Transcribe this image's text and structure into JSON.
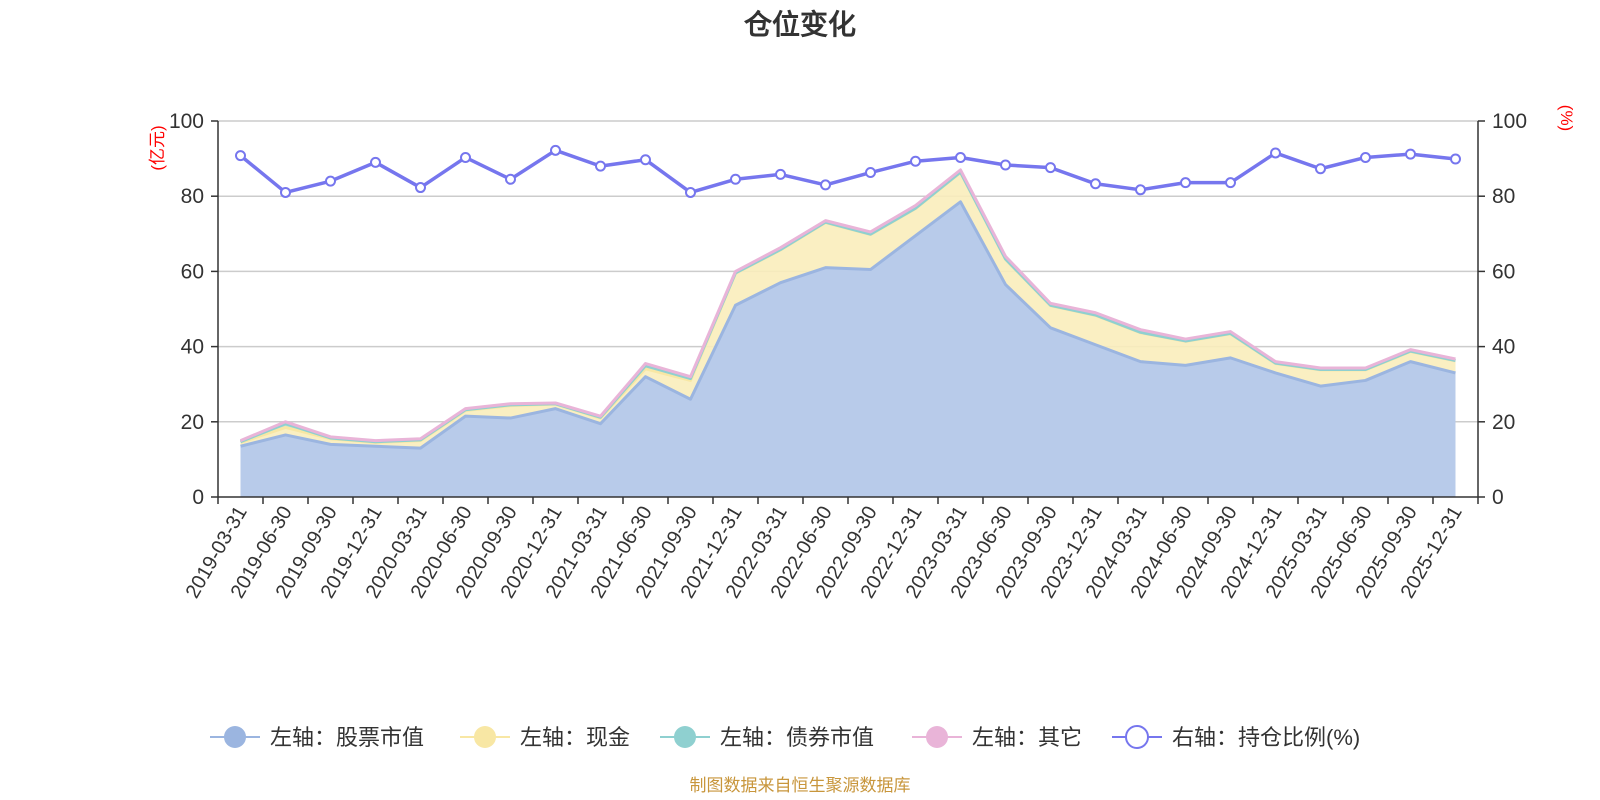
{
  "chart_data": {
    "type": "area",
    "title": "仓位变化",
    "source": "制图数据来自恒生聚源数据库",
    "y_left": {
      "unit": "(亿元)",
      "min": 0,
      "max": 100,
      "ticks": [
        "0",
        "20",
        "40",
        "60",
        "80",
        "100"
      ]
    },
    "y_right": {
      "unit": "(%)",
      "min": 0,
      "max": 100,
      "ticks": [
        "0",
        "20",
        "40",
        "60",
        "80",
        "100"
      ]
    },
    "categories": [
      "2019-03-31",
      "2019-06-30",
      "2019-09-30",
      "2019-12-31",
      "2020-03-31",
      "2020-06-30",
      "2020-09-30",
      "2020-12-31",
      "2021-03-31",
      "2021-06-30",
      "2021-09-30",
      "2021-12-31",
      "2022-03-31",
      "2022-06-30",
      "2022-09-30",
      "2022-12-31",
      "2023-03-31",
      "2023-06-30",
      "2023-09-30",
      "2023-12-31",
      "2024-03-31",
      "2024-06-30",
      "2024-09-30",
      "2024-12-31",
      "2025-03-31",
      "2025-06-30",
      "2025-09-30",
      "2025-12-31"
    ],
    "series": [
      {
        "name": "左轴：股票市值",
        "axis": "left",
        "stack": true,
        "color": "#9bb5e0",
        "fill": "#b8cbea",
        "values": [
          13.5,
          16.5,
          14,
          13.5,
          13,
          21.5,
          21,
          23.5,
          19.5,
          32,
          26,
          51,
          57,
          61,
          60.5,
          69.5,
          78.5,
          56.5,
          45,
          40.5,
          36,
          35,
          37,
          33,
          29.5,
          31,
          36,
          33
        ]
      },
      {
        "name": "左轴：现金",
        "axis": "left",
        "stack": true,
        "color": "#f8e7a4",
        "fill": "#faedbb",
        "values": [
          1,
          2,
          1.5,
          1,
          2,
          1.5,
          3.3,
          1.2,
          1.5,
          2.1,
          5,
          8.5,
          8.7,
          12,
          9.3,
          7.2,
          7.8,
          6.7,
          5.9,
          7.8,
          7.7,
          6.4,
          6.4,
          2.5,
          4.3,
          2.8,
          2.7,
          3.2
        ]
      },
      {
        "name": "左轴：债券市值",
        "axis": "left",
        "stack": true,
        "color": "#8fd0d0",
        "fill": "#a8dcd8",
        "values": [
          0.2,
          1,
          0.2,
          0.2,
          0.2,
          0.2,
          0.2,
          0.1,
          0.2,
          0.8,
          0.5,
          0.1,
          0.1,
          0.1,
          0.1,
          0.1,
          0.1,
          0.1,
          0.1,
          0.1,
          0.1,
          0.1,
          0.1,
          0.1,
          0.1,
          0.1,
          0.1,
          0.1
        ]
      },
      {
        "name": "左轴：其它",
        "axis": "left",
        "stack": true,
        "color": "#e9b4d8",
        "fill": "#e9b4d8",
        "values": [
          0.3,
          0.5,
          0.3,
          0.3,
          0.3,
          0.3,
          0.3,
          0.2,
          0.3,
          0.6,
          0.5,
          0.4,
          0.5,
          0.4,
          0.6,
          0.7,
          0.6,
          0.7,
          0.5,
          0.6,
          0.7,
          0.5,
          0.5,
          0.4,
          0.4,
          0.4,
          0.4,
          0.4
        ]
      },
      {
        "name": "右轴：持仓比例(%)",
        "axis": "right",
        "stack": false,
        "color": "#7676ee",
        "fill": "#ffffff",
        "values": [
          90.8,
          81,
          84,
          89,
          82.3,
          90.3,
          84.5,
          92.2,
          88,
          89.7,
          81,
          84.5,
          85.8,
          83,
          86.3,
          89.3,
          90.3,
          88.3,
          87.6,
          83.3,
          81.7,
          83.6,
          83.6,
          91.5,
          87.3,
          90.3,
          91.2,
          89.9
        ]
      }
    ]
  }
}
